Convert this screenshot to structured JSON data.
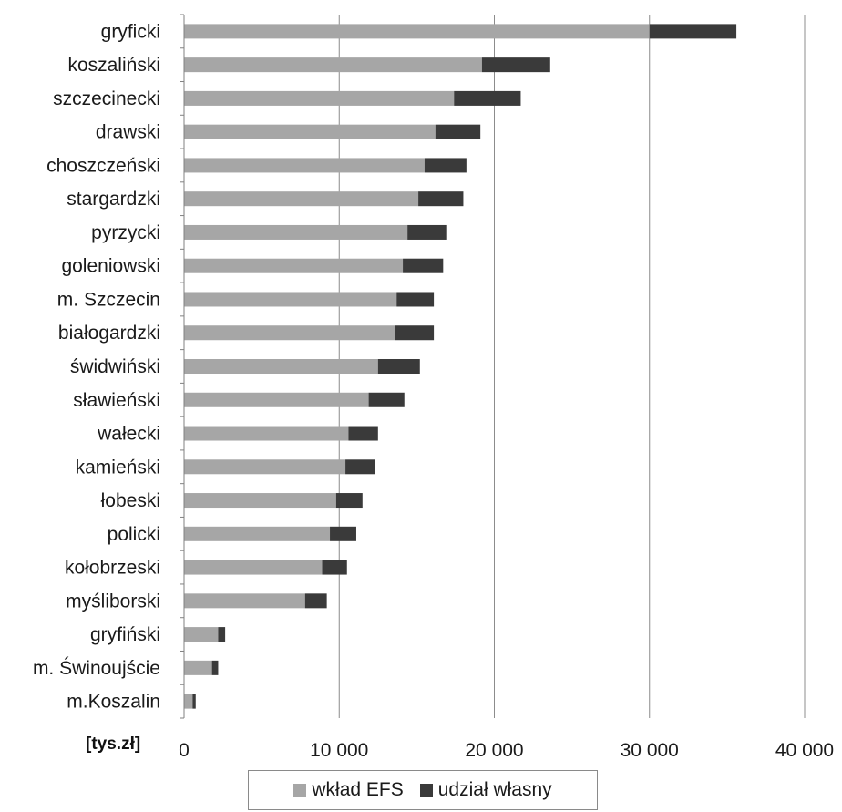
{
  "chart_data": {
    "type": "bar",
    "orientation": "horizontal",
    "stacked": true,
    "unit_label": "[tys.zł]",
    "categories": [
      "gryficki",
      "koszaliński",
      "szczecinecki",
      "drawski",
      "choszczeński",
      "stargardzki",
      "pyrzycki",
      "goleniowski",
      "m. Szczecin",
      "białogardzki",
      "świdwiński",
      "sławieński",
      "wałecki",
      "kamieński",
      "łobeski",
      "policki",
      "kołobrzeski",
      "myśliborski",
      "gryfiński",
      "m. Świnoujście",
      "m.Koszalin"
    ],
    "series": [
      {
        "name": "wkład EFS",
        "color": "#a6a6a6",
        "values": [
          30000,
          19200,
          17400,
          16200,
          15500,
          15100,
          14400,
          14100,
          13700,
          13600,
          12500,
          11900,
          10600,
          10400,
          9800,
          9400,
          8900,
          7800,
          2200,
          1800,
          550
        ]
      },
      {
        "name": "udział własny",
        "color": "#3a3a3a",
        "values": [
          5600,
          4400,
          4300,
          2900,
          2700,
          2900,
          2500,
          2600,
          2400,
          2500,
          2700,
          2300,
          1900,
          1900,
          1700,
          1700,
          1600,
          1400,
          450,
          400,
          200
        ]
      }
    ],
    "xlim": [
      0,
      40000
    ],
    "xticks": [
      0,
      10000,
      20000,
      30000,
      40000
    ],
    "xtick_labels": [
      "0",
      "10 000",
      "20 000",
      "30 000",
      "40 000"
    ],
    "grid": true,
    "legend_position": "bottom"
  }
}
